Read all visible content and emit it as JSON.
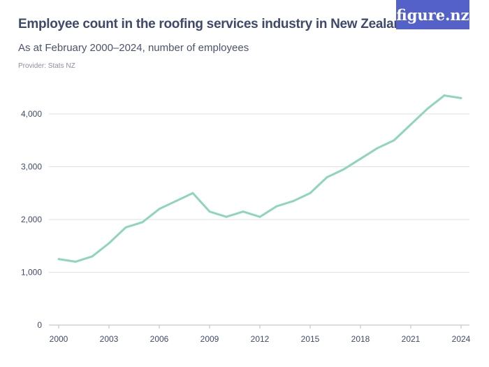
{
  "header": {
    "title": "Employee count in the roofing services industry in New Zealand",
    "subtitle": "As at February 2000–2024, number of employees",
    "provider": "Provider: Stats NZ",
    "logo": "figure.nz"
  },
  "colors": {
    "line": "#8fd6b8",
    "grid": "#e0e0e0",
    "logo_bg": "#5461c8",
    "text": "#3f4a6b"
  },
  "chart_data": {
    "type": "line",
    "title": "Employee count in the roofing services industry in New Zealand",
    "subtitle": "As at February 2000–2024, number of employees",
    "x": [
      2000,
      2001,
      2002,
      2003,
      2004,
      2005,
      2006,
      2007,
      2008,
      2009,
      2010,
      2011,
      2012,
      2013,
      2014,
      2015,
      2016,
      2017,
      2018,
      2019,
      2020,
      2021,
      2022,
      2023,
      2024
    ],
    "series": [
      {
        "values": [
          1250,
          1200,
          1300,
          1550,
          1850,
          1950,
          2200,
          2350,
          2500,
          2150,
          2050,
          2150,
          2050,
          2250,
          2350,
          2500,
          2800,
          2950,
          3150,
          3350,
          3500,
          3800,
          4100,
          4350,
          4300
        ]
      }
    ],
    "xlim": [
      2000,
      2024
    ],
    "ylim": [
      0,
      4000
    ],
    "xticks": [
      2000,
      2003,
      2006,
      2009,
      2012,
      2015,
      2018,
      2021,
      2024
    ],
    "yticks": [
      0,
      1000,
      2000,
      3000,
      4000
    ],
    "ytick_labels": [
      "0",
      "1,000",
      "2,000",
      "3,000",
      "4,000"
    ],
    "grid": "horizontal",
    "legend": "none"
  }
}
